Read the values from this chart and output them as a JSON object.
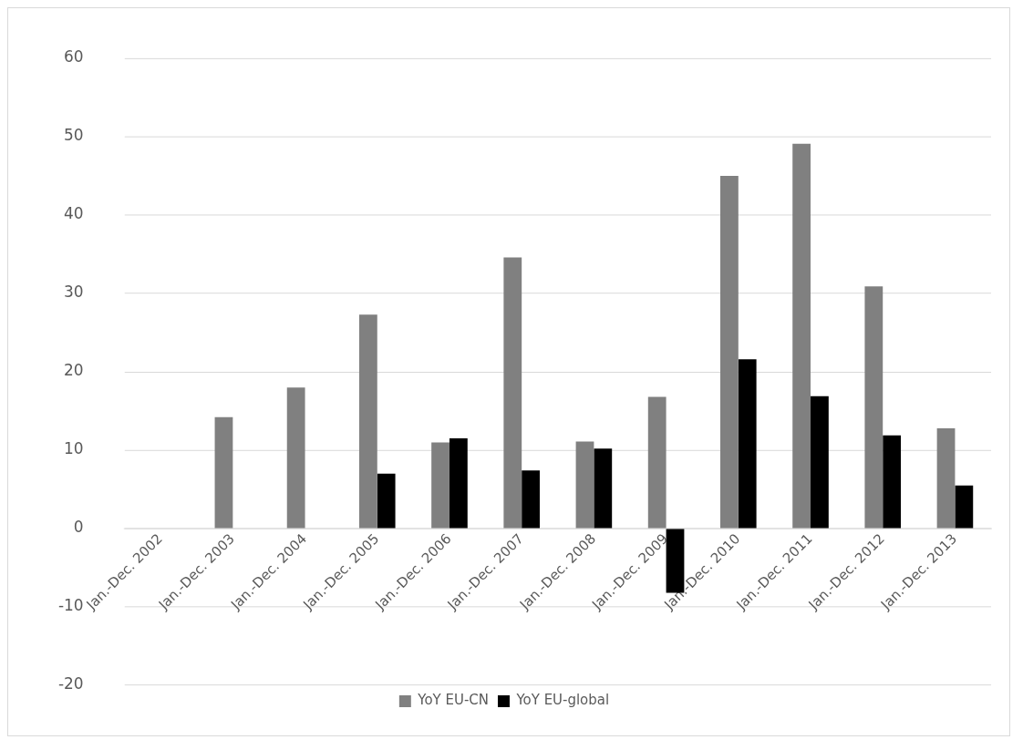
{
  "chart_data": {
    "type": "bar",
    "categories": [
      "Jan.-Dec. 2002",
      "Jan.-Dec. 2003",
      "Jan.-Dec. 2004",
      "Jan.-Dec. 2005",
      "Jan.-Dec. 2006",
      "Jan.-Dec. 2007",
      "Jan.-Dec. 2008",
      "Jan.-Dec. 2009",
      "Jan.-Dec. 2010",
      "Jan.-Dec. 2011",
      "Jan.-Dec. 2012",
      "Jan.-Dec. 2013"
    ],
    "series": [
      {
        "name": "YoY EU-CN",
        "color": "#808080",
        "values": [
          null,
          14.2,
          18.0,
          27.3,
          11.0,
          34.6,
          11.1,
          16.8,
          45.0,
          49.1,
          30.9,
          12.8
        ]
      },
      {
        "name": "YoY EU-global",
        "color": "#000000",
        "values": [
          null,
          null,
          null,
          7.0,
          11.5,
          7.4,
          10.2,
          -8.2,
          21.6,
          16.9,
          11.9,
          5.5
        ]
      }
    ],
    "ylim": [
      -20,
      60
    ],
    "yticks": [
      -20,
      -10,
      0,
      10,
      20,
      30,
      40,
      50,
      60
    ],
    "grid": "y",
    "legend": "bottom"
  }
}
